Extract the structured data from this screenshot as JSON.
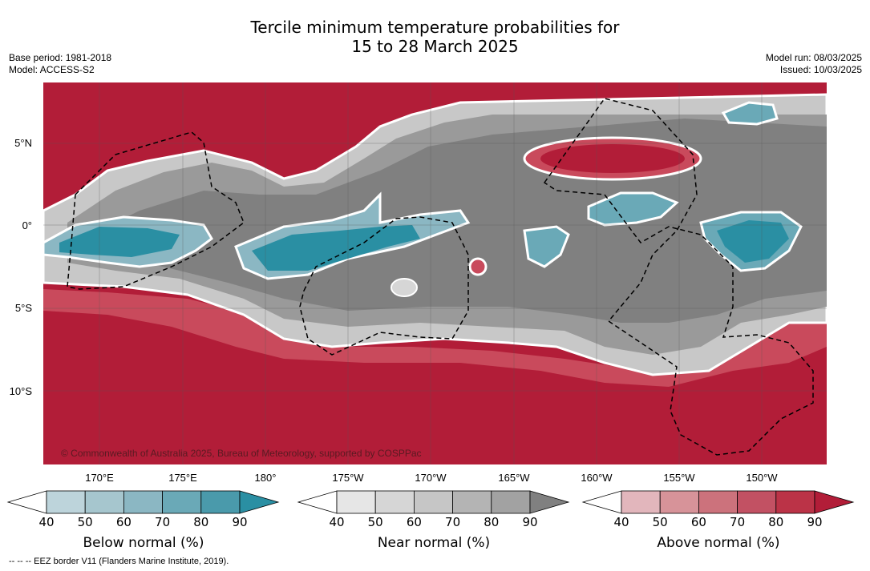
{
  "title": {
    "line1": "Tercile minimum temperature probabilities for",
    "line2": "15 to 28 March 2025"
  },
  "meta_left": {
    "base_period": "Base period: 1981-2018",
    "model": "Model: ACCESS-S2"
  },
  "meta_right": {
    "model_run": "Model run: 08/03/2025",
    "issued": "Issued: 10/03/2025"
  },
  "map": {
    "lat_labels": [
      "5°N",
      "0°",
      "5°S",
      "10°S"
    ],
    "lon_labels": [
      "170°E",
      "175°E",
      "180°",
      "175°W",
      "170°W",
      "165°W",
      "160°W",
      "155°W",
      "150°W"
    ],
    "copyright": "© Commonwealth of Australia 2025, Bureau of Meteorology, supported by COSPPac",
    "colors": {
      "above": "#b21d38",
      "near_dark": "#808080",
      "below": "#2a8fa3"
    }
  },
  "colorbars": [
    {
      "label": "Below normal (%)",
      "ticks": [
        "40",
        "50",
        "60",
        "70",
        "80",
        "90"
      ],
      "colors": [
        "#ffffff",
        "#bdd4db",
        "#a6c6ce",
        "#8bb7c3",
        "#6aa9b7",
        "#4a9aab",
        "#2a8fa3"
      ]
    },
    {
      "label": "Near normal (%)",
      "ticks": [
        "40",
        "50",
        "60",
        "70",
        "80",
        "90"
      ],
      "colors": [
        "#ffffff",
        "#e6e6e6",
        "#d6d6d6",
        "#c6c6c6",
        "#b4b4b4",
        "#a2a2a2",
        "#808080"
      ]
    },
    {
      "label": "Above normal (%)",
      "ticks": [
        "40",
        "50",
        "60",
        "70",
        "80",
        "90"
      ],
      "colors": [
        "#ffffff",
        "#e2b6bc",
        "#d79399",
        "#cc727c",
        "#c25163",
        "#bb3347",
        "#b21d38"
      ]
    }
  ],
  "eez_note": "--  --  -- EEZ border V11 (Flanders Marine Institute, 2019)."
}
